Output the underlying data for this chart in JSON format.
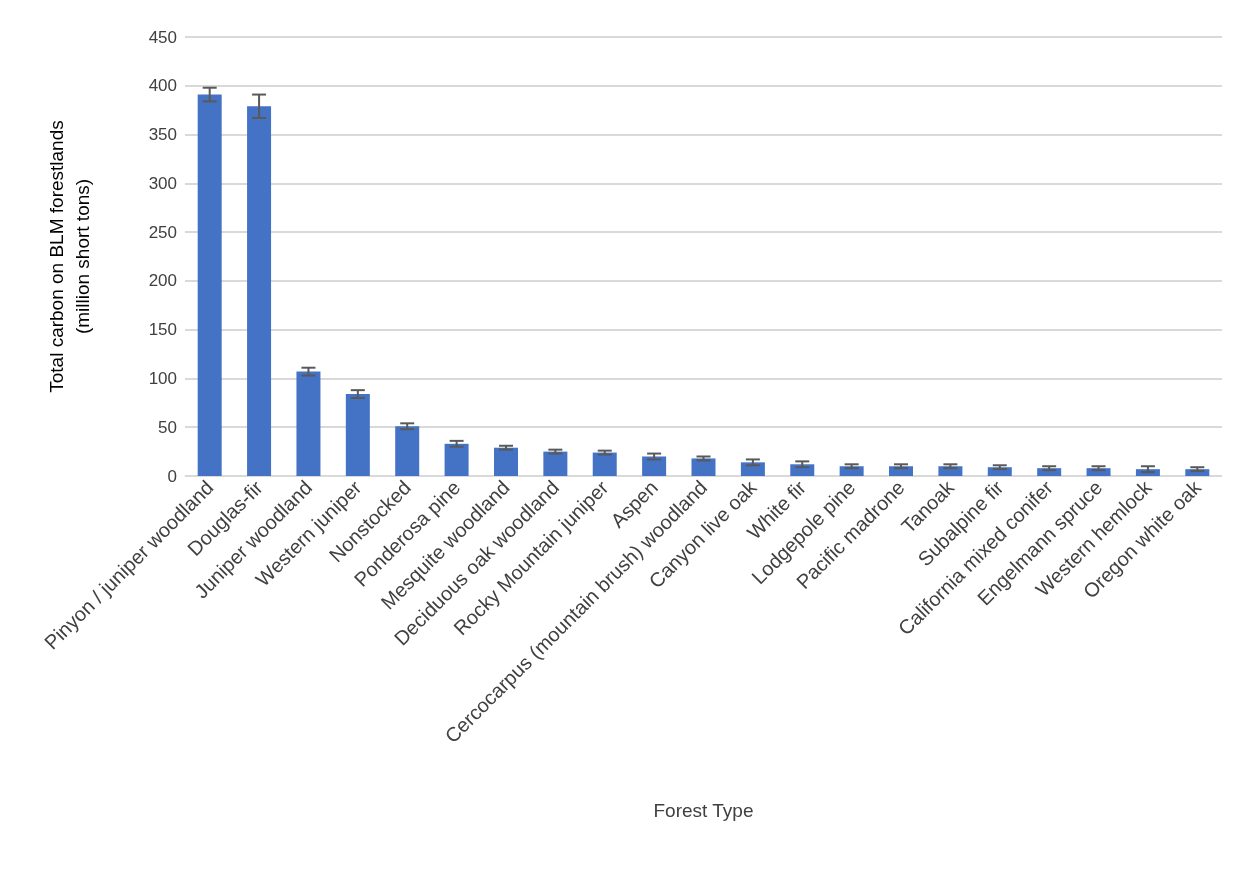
{
  "chart_data": {
    "type": "bar",
    "xlabel": "Forest Type",
    "ylabel": "Total carbon on BLM forestlands\n(million short tons)",
    "categories": [
      "Pinyon / juniper woodland",
      "Douglas-fir",
      "Juniper woodland",
      "Western juniper",
      "Nonstocked",
      "Ponderosa pine",
      "Mesquite woodland",
      "Deciduous oak woodland",
      "Rocky Mountain juniper",
      "Aspen",
      "Cercocarpus (mountain brush) woodland",
      "Canyon live oak",
      "White fir",
      "Lodgepole pine",
      "Pacific madrone",
      "Tanoak",
      "Subalpine fir",
      "California mixed conifer",
      "Engelmann spruce",
      "Western hemlock",
      "Oregon white oak"
    ],
    "values": [
      391,
      379,
      107,
      84,
      51,
      33,
      29,
      25,
      24,
      20,
      18,
      14,
      12,
      10,
      10,
      10,
      9,
      8,
      8,
      7,
      7
    ],
    "errors": [
      7,
      12,
      4,
      4,
      3,
      3,
      2,
      2,
      2,
      3,
      2,
      3,
      3,
      2,
      2,
      2,
      2,
      2,
      2,
      3,
      2
    ],
    "color": "#4472c4",
    "ylim": [
      0,
      450
    ],
    "yticks": [
      0,
      50,
      100,
      150,
      200,
      250,
      300,
      350,
      400,
      450
    ],
    "grid": "y"
  }
}
